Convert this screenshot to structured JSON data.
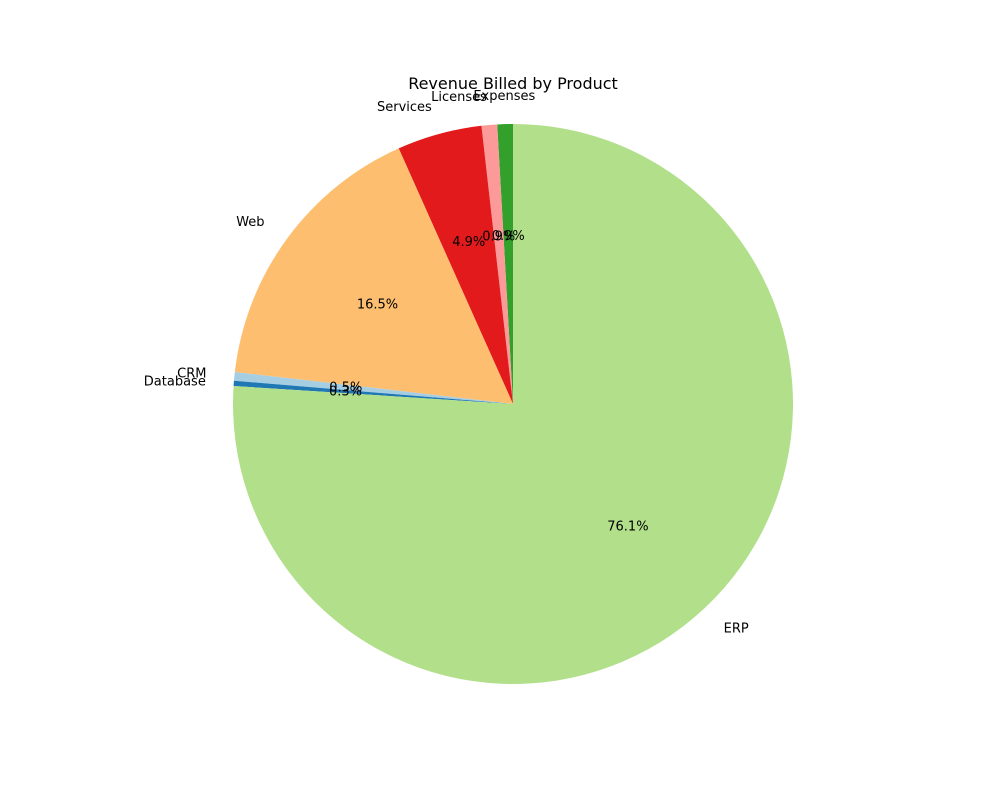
{
  "chart_data": {
    "type": "pie",
    "title": "Revenue Billed by Product",
    "start_angle_deg": 90,
    "clockwise": false,
    "slices": [
      {
        "label": "Expenses",
        "value": 0.9,
        "pct_label": "0.9%",
        "color": "#33a02c"
      },
      {
        "label": "Licenses",
        "value": 0.9,
        "pct_label": "0.9%",
        "color": "#fb9a99"
      },
      {
        "label": "Services",
        "value": 4.9,
        "pct_label": "4.9%",
        "color": "#e31a1c"
      },
      {
        "label": "Web",
        "value": 16.5,
        "pct_label": "16.5%",
        "color": "#fdbf6f"
      },
      {
        "label": "CRM",
        "value": 0.5,
        "pct_label": "0.5%",
        "color": "#a6cee3"
      },
      {
        "label": "Database",
        "value": 0.3,
        "pct_label": "0.3%",
        "color": "#1f78b4"
      },
      {
        "label": "ERP",
        "value": 76.1,
        "pct_label": "76.1%",
        "color": "#b2df8a"
      }
    ]
  }
}
